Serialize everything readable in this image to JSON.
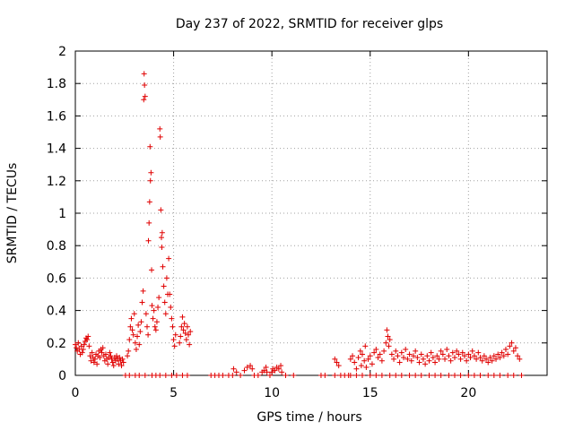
{
  "chart_data": {
    "type": "scatter",
    "title": "Day 237 of 2022, SRMTID for receiver glps",
    "xlabel": "GPS time / hours",
    "ylabel": "SRMTID / TECUs",
    "xlim": [
      0,
      24
    ],
    "ylim": [
      0,
      2
    ],
    "xticks": [
      0,
      5,
      10,
      15,
      20
    ],
    "yticks": [
      0,
      0.2,
      0.4,
      0.6,
      0.8,
      1,
      1.2,
      1.4,
      1.6,
      1.8,
      2
    ],
    "xtick_labels": [
      "0",
      "5",
      "10",
      "15",
      "20"
    ],
    "ytick_labels": [
      "0",
      "0.2",
      "0.4",
      "0.6",
      "0.8",
      "1",
      "1.2",
      "1.4",
      "1.6",
      "1.8",
      "2"
    ],
    "grid": true,
    "marker": "+",
    "color": "#e00000",
    "series": [
      {
        "name": "SRMTID",
        "points": [
          [
            0.0,
            0.19
          ],
          [
            0.05,
            0.17
          ],
          [
            0.1,
            0.15
          ],
          [
            0.15,
            0.2
          ],
          [
            0.2,
            0.16
          ],
          [
            0.25,
            0.13
          ],
          [
            0.3,
            0.18
          ],
          [
            0.35,
            0.14
          ],
          [
            0.4,
            0.16
          ],
          [
            0.45,
            0.19
          ],
          [
            0.5,
            0.21
          ],
          [
            0.55,
            0.23
          ],
          [
            0.6,
            0.22
          ],
          [
            0.65,
            0.24
          ],
          [
            0.7,
            0.18
          ],
          [
            0.75,
            0.12
          ],
          [
            0.8,
            0.09
          ],
          [
            0.85,
            0.14
          ],
          [
            0.9,
            0.11
          ],
          [
            0.95,
            0.08
          ],
          [
            1.0,
            0.1
          ],
          [
            1.05,
            0.13
          ],
          [
            1.1,
            0.07
          ],
          [
            1.15,
            0.12
          ],
          [
            1.2,
            0.15
          ],
          [
            1.25,
            0.11
          ],
          [
            1.3,
            0.16
          ],
          [
            1.35,
            0.14
          ],
          [
            1.4,
            0.17
          ],
          [
            1.45,
            0.12
          ],
          [
            1.5,
            0.09
          ],
          [
            1.55,
            0.13
          ],
          [
            1.6,
            0.1
          ],
          [
            1.65,
            0.07
          ],
          [
            1.7,
            0.11
          ],
          [
            1.75,
            0.14
          ],
          [
            1.8,
            0.12
          ],
          [
            1.85,
            0.1
          ],
          [
            1.9,
            0.08
          ],
          [
            1.95,
            0.06
          ],
          [
            2.0,
            0.11
          ],
          [
            2.05,
            0.09
          ],
          [
            2.1,
            0.12
          ],
          [
            2.15,
            0.1
          ],
          [
            2.2,
            0.07
          ],
          [
            2.25,
            0.11
          ],
          [
            2.3,
            0.09
          ],
          [
            2.35,
            0.06
          ],
          [
            2.4,
            0.1
          ],
          [
            2.45,
            0.08
          ],
          [
            2.65,
            0.12
          ],
          [
            2.7,
            0.15
          ],
          [
            2.75,
            0.22
          ],
          [
            2.8,
            0.3
          ],
          [
            2.85,
            0.35
          ],
          [
            2.9,
            0.28
          ],
          [
            2.95,
            0.25
          ],
          [
            3.0,
            0.38
          ],
          [
            3.05,
            0.2
          ],
          [
            3.1,
            0.16
          ],
          [
            3.15,
            0.24
          ],
          [
            3.2,
            0.31
          ],
          [
            3.25,
            0.19
          ],
          [
            3.3,
            0.27
          ],
          [
            3.35,
            0.33
          ],
          [
            3.4,
            0.45
          ],
          [
            3.45,
            0.52
          ],
          [
            3.48,
            1.7
          ],
          [
            3.5,
            1.86
          ],
          [
            3.52,
            1.79
          ],
          [
            3.55,
            1.72
          ],
          [
            3.6,
            0.38
          ],
          [
            3.65,
            0.3
          ],
          [
            3.7,
            0.25
          ],
          [
            3.72,
            0.83
          ],
          [
            3.75,
            0.94
          ],
          [
            3.78,
            1.07
          ],
          [
            3.8,
            1.41
          ],
          [
            3.82,
            1.2
          ],
          [
            3.85,
            1.25
          ],
          [
            3.88,
            0.65
          ],
          [
            3.9,
            0.43
          ],
          [
            3.95,
            0.35
          ],
          [
            4.0,
            0.4
          ],
          [
            4.05,
            0.3
          ],
          [
            4.1,
            0.28
          ],
          [
            4.15,
            0.33
          ],
          [
            4.2,
            0.42
          ],
          [
            4.25,
            0.48
          ],
          [
            4.3,
            1.52
          ],
          [
            4.32,
            1.47
          ],
          [
            4.35,
            1.02
          ],
          [
            4.38,
            0.85
          ],
          [
            4.4,
            0.79
          ],
          [
            4.42,
            0.88
          ],
          [
            4.45,
            0.67
          ],
          [
            4.5,
            0.55
          ],
          [
            4.55,
            0.45
          ],
          [
            4.6,
            0.38
          ],
          [
            4.65,
            0.6
          ],
          [
            4.7,
            0.5
          ],
          [
            4.75,
            0.72
          ],
          [
            4.8,
            0.5
          ],
          [
            4.85,
            0.42
          ],
          [
            4.9,
            0.35
          ],
          [
            4.95,
            0.3
          ],
          [
            5.0,
            0.22
          ],
          [
            5.05,
            0.18
          ],
          [
            5.1,
            0.25
          ],
          [
            5.3,
            0.2
          ],
          [
            5.35,
            0.24
          ],
          [
            5.4,
            0.3
          ],
          [
            5.45,
            0.36
          ],
          [
            5.5,
            0.28
          ],
          [
            5.55,
            0.32
          ],
          [
            5.6,
            0.26
          ],
          [
            5.65,
            0.22
          ],
          [
            5.7,
            0.3
          ],
          [
            5.75,
            0.25
          ],
          [
            5.8,
            0.19
          ],
          [
            5.85,
            0.27
          ],
          [
            2.55,
            0.0
          ],
          [
            2.75,
            0.0
          ],
          [
            3.05,
            0.0
          ],
          [
            3.25,
            0.0
          ],
          [
            3.55,
            0.0
          ],
          [
            3.9,
            0.0
          ],
          [
            4.1,
            0.0
          ],
          [
            4.3,
            0.0
          ],
          [
            4.6,
            0.0
          ],
          [
            4.9,
            0.0
          ],
          [
            5.15,
            0.0
          ],
          [
            5.45,
            0.0
          ],
          [
            5.7,
            0.0
          ],
          [
            6.9,
            0.0
          ],
          [
            7.1,
            0.0
          ],
          [
            7.3,
            0.0
          ],
          [
            7.5,
            0.0
          ],
          [
            7.8,
            0.0
          ],
          [
            8.0,
            0.0
          ],
          [
            8.05,
            0.04
          ],
          [
            8.2,
            0.02
          ],
          [
            8.4,
            0.0
          ],
          [
            8.6,
            0.03
          ],
          [
            8.75,
            0.05
          ],
          [
            8.9,
            0.06
          ],
          [
            9.0,
            0.04
          ],
          [
            9.1,
            0.0
          ],
          [
            9.3,
            0.0
          ],
          [
            9.5,
            0.02
          ],
          [
            9.6,
            0.03
          ],
          [
            9.7,
            0.05
          ],
          [
            9.75,
            0.02
          ],
          [
            9.9,
            0.0
          ],
          [
            10.0,
            0.02
          ],
          [
            10.05,
            0.04
          ],
          [
            10.15,
            0.03
          ],
          [
            10.25,
            0.05
          ],
          [
            10.35,
            0.04
          ],
          [
            10.45,
            0.06
          ],
          [
            10.5,
            0.02
          ],
          [
            10.7,
            0.0
          ],
          [
            11.1,
            0.0
          ],
          [
            12.5,
            0.0
          ],
          [
            12.7,
            0.0
          ],
          [
            13.2,
            0.1
          ],
          [
            13.3,
            0.08
          ],
          [
            13.4,
            0.06
          ],
          [
            13.2,
            0.0
          ],
          [
            13.5,
            0.0
          ],
          [
            13.7,
            0.0
          ],
          [
            13.9,
            0.0
          ],
          [
            14.0,
            0.1
          ],
          [
            14.1,
            0.12
          ],
          [
            14.2,
            0.08
          ],
          [
            14.3,
            0.04
          ],
          [
            14.4,
            0.11
          ],
          [
            14.5,
            0.15
          ],
          [
            14.55,
            0.06
          ],
          [
            14.6,
            0.13
          ],
          [
            14.7,
            0.09
          ],
          [
            14.75,
            0.18
          ],
          [
            14.8,
            0.05
          ],
          [
            14.9,
            0.1
          ],
          [
            15.0,
            0.12
          ],
          [
            15.1,
            0.07
          ],
          [
            15.2,
            0.14
          ],
          [
            15.3,
            0.16
          ],
          [
            15.4,
            0.11
          ],
          [
            15.5,
            0.13
          ],
          [
            15.6,
            0.09
          ],
          [
            15.7,
            0.15
          ],
          [
            15.8,
            0.2
          ],
          [
            15.85,
            0.28
          ],
          [
            15.9,
            0.24
          ],
          [
            15.95,
            0.18
          ],
          [
            16.0,
            0.22
          ],
          [
            16.1,
            0.13
          ],
          [
            16.2,
            0.1
          ],
          [
            16.3,
            0.15
          ],
          [
            16.4,
            0.12
          ],
          [
            16.5,
            0.08
          ],
          [
            16.6,
            0.14
          ],
          [
            16.7,
            0.11
          ],
          [
            16.8,
            0.16
          ],
          [
            16.9,
            0.1
          ],
          [
            17.0,
            0.13
          ],
          [
            17.1,
            0.09
          ],
          [
            17.2,
            0.12
          ],
          [
            17.3,
            0.15
          ],
          [
            17.4,
            0.11
          ],
          [
            17.5,
            0.08
          ],
          [
            17.6,
            0.13
          ],
          [
            17.7,
            0.1
          ],
          [
            17.8,
            0.07
          ],
          [
            17.9,
            0.12
          ],
          [
            18.0,
            0.09
          ],
          [
            18.1,
            0.14
          ],
          [
            18.2,
            0.11
          ],
          [
            18.3,
            0.08
          ],
          [
            18.4,
            0.12
          ],
          [
            18.5,
            0.1
          ],
          [
            18.6,
            0.15
          ],
          [
            18.7,
            0.13
          ],
          [
            18.8,
            0.1
          ],
          [
            18.9,
            0.16
          ],
          [
            19.0,
            0.12
          ],
          [
            19.1,
            0.09
          ],
          [
            19.2,
            0.14
          ],
          [
            19.3,
            0.11
          ],
          [
            19.4,
            0.15
          ],
          [
            19.5,
            0.13
          ],
          [
            19.6,
            0.1
          ],
          [
            19.7,
            0.14
          ],
          [
            19.8,
            0.12
          ],
          [
            19.9,
            0.09
          ],
          [
            20.0,
            0.13
          ],
          [
            20.1,
            0.11
          ],
          [
            20.2,
            0.15
          ],
          [
            20.3,
            0.12
          ],
          [
            20.4,
            0.1
          ],
          [
            20.5,
            0.14
          ],
          [
            20.6,
            0.11
          ],
          [
            20.7,
            0.09
          ],
          [
            20.8,
            0.12
          ],
          [
            20.9,
            0.1
          ],
          [
            21.0,
            0.08
          ],
          [
            21.1,
            0.11
          ],
          [
            21.2,
            0.09
          ],
          [
            21.3,
            0.12
          ],
          [
            21.4,
            0.1
          ],
          [
            21.5,
            0.13
          ],
          [
            21.6,
            0.11
          ],
          [
            21.7,
            0.14
          ],
          [
            21.8,
            0.12
          ],
          [
            21.9,
            0.16
          ],
          [
            22.0,
            0.13
          ],
          [
            22.1,
            0.18
          ],
          [
            22.2,
            0.2
          ],
          [
            22.3,
            0.15
          ],
          [
            22.4,
            0.17
          ],
          [
            22.5,
            0.12
          ],
          [
            22.6,
            0.1
          ],
          [
            14.0,
            0.0
          ],
          [
            14.3,
            0.0
          ],
          [
            14.6,
            0.0
          ],
          [
            15.0,
            0.0
          ],
          [
            15.3,
            0.0
          ],
          [
            15.6,
            0.0
          ],
          [
            16.0,
            0.0
          ],
          [
            16.3,
            0.0
          ],
          [
            16.6,
            0.0
          ],
          [
            17.0,
            0.0
          ],
          [
            17.3,
            0.0
          ],
          [
            17.6,
            0.0
          ],
          [
            18.0,
            0.0
          ],
          [
            18.3,
            0.0
          ],
          [
            18.6,
            0.0
          ],
          [
            19.0,
            0.0
          ],
          [
            19.3,
            0.0
          ],
          [
            19.6,
            0.0
          ],
          [
            20.0,
            0.0
          ],
          [
            20.3,
            0.0
          ],
          [
            20.6,
            0.0
          ],
          [
            21.0,
            0.0
          ],
          [
            21.3,
            0.0
          ],
          [
            21.6,
            0.0
          ],
          [
            22.0,
            0.0
          ],
          [
            22.3,
            0.0
          ],
          [
            22.7,
            0.0
          ]
        ]
      }
    ]
  }
}
